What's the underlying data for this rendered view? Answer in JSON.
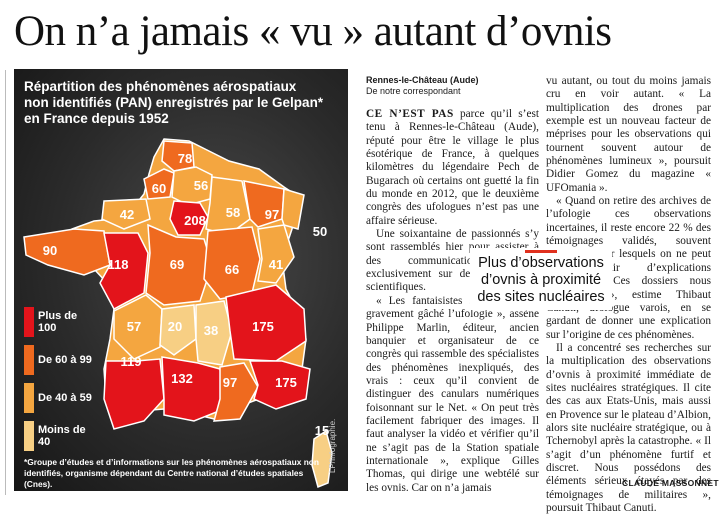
{
  "headline": "On n’a jamais « vu » autant d’ovnis",
  "map": {
    "title": "Répartition des phénomènes aérospatiaux non identifiés (PAN) enregistrés par le Gelpan* en France depuis 1952",
    "legend": [
      {
        "label": "Plus de 100",
        "color": "#e3141b"
      },
      {
        "label": "De 60 à 99",
        "color": "#ef6a1f"
      },
      {
        "label": "De 40 à 59",
        "color": "#f4a640"
      },
      {
        "label": "Moins de 40",
        "color": "#f7cf84"
      }
    ],
    "regions": [
      {
        "value": "78",
        "class": "De 60 à 99"
      },
      {
        "value": "60",
        "class": "De 60 à 99"
      },
      {
        "value": "56",
        "class": "De 40 à 59"
      },
      {
        "value": "208",
        "class": "Plus de 100"
      },
      {
        "value": "42",
        "class": "De 40 à 59"
      },
      {
        "value": "58",
        "class": "De 40 à 59"
      },
      {
        "value": "97",
        "class": "De 60 à 99"
      },
      {
        "value": "50",
        "class": "De 40 à 59"
      },
      {
        "value": "90",
        "class": "De 60 à 99"
      },
      {
        "value": "118",
        "class": "Plus de 100"
      },
      {
        "value": "69",
        "class": "De 60 à 99"
      },
      {
        "value": "66",
        "class": "De 60 à 99"
      },
      {
        "value": "41",
        "class": "De 40 à 59"
      },
      {
        "value": "57",
        "class": "De 40 à 59"
      },
      {
        "value": "20",
        "class": "Moins de 40"
      },
      {
        "value": "38",
        "class": "Moins de 40"
      },
      {
        "value": "175",
        "class": "Plus de 100"
      },
      {
        "value": "119",
        "class": "Plus de 100"
      },
      {
        "value": "132",
        "class": "Plus de 100"
      },
      {
        "value": "97",
        "class": "De 60 à 99"
      },
      {
        "value": "175",
        "class": "Plus de 100"
      },
      {
        "value": "15",
        "class": "Moins de 40"
      }
    ],
    "footnote": "*Groupe d’études et d’informations sur les phénomènes aérospatiaux non identifiés, organisme dépendant du Centre national d’études spatiales (Cnes).",
    "credit": "LP/Infographie."
  },
  "article": {
    "dateline_place": "Rennes-le-Château (Aude)",
    "dateline_author": "De notre correspondant",
    "lead_caps": "CE N’EST PAS",
    "col1": [
      "parce qu’il s’est tenu à Rennes-le-Château (Aude), réputé pour être le village le plus ésotérique de France, à quelques kilomètres du légendaire Pech de Bugarach où certains ont guetté la fin du monde en 2012, que le deuxième congrès des ufologues n’est pas une affaire sérieuse.",
      "Une soixantaine de passionnés s’y sont rassemblés hier pour assister à des communications basées exclusivement sur des observations scientifiques.",
      "« Les fantaisistes sont pollué et gravement gâché l’ufologie », assène Philippe Marlin, éditeur, ancien banquier et organisateur de ce congrès qui rassemble des spécialistes des phénomènes inexpliqués, des vrais : ceux qu’il convient de distinguer des canulars numériques foisonnant sur le Net. « On peut très facilement fabriquer des images. Il faut analyser la vidéo et vérifier qu’il ne s’agit pas de la Station spatiale internationale », explique Gilles Thomas, qui dirige une webtélé sur les ovnis. Car on n’a jamais"
    ],
    "col2": [
      "vu autant, ou tout du moins jamais cru en voir autant. « La multiplication des drones par exemple est un nouveau facteur de méprises pour les observations qui tournent souvent autour de phénomènes lumineux », poursuit Didier Gomez du magazine « UFOmania ».",
      "« Quand on retire des archives de l’ufologie ces observations incertaines, il reste encore 22 % des témoignages validés, souvent recoupés, pour lesquels on ne peut pas fournir d’explications rationnelles. Ces dossiers nous intéressent », estime Thibaut Canuti, ufologue varois, en se gardant de donner une explication sur l’origine de ces phénomènes.",
      "Il a concentré ses recherches sur la multiplication des observations d’ovnis à proximité immédiate de sites nucléaires stratégiques. Il cite des cas aux Etats-Unis, mais aussi en Provence sur le plateau d’Albion, alors site nucléaire stratégique, ou à Tchernobyl après la catastrophe. « Il s’agit d’un phénomène furtif et discret. Nous possédons des éléments sérieux étayés par des témoignages de militaires », poursuit Thibaut Canuti."
    ],
    "pullquote": "Plus d’observations d’ovnis à proximité des sites nucléaires",
    "author": "CLAUDE MASSONNET"
  }
}
